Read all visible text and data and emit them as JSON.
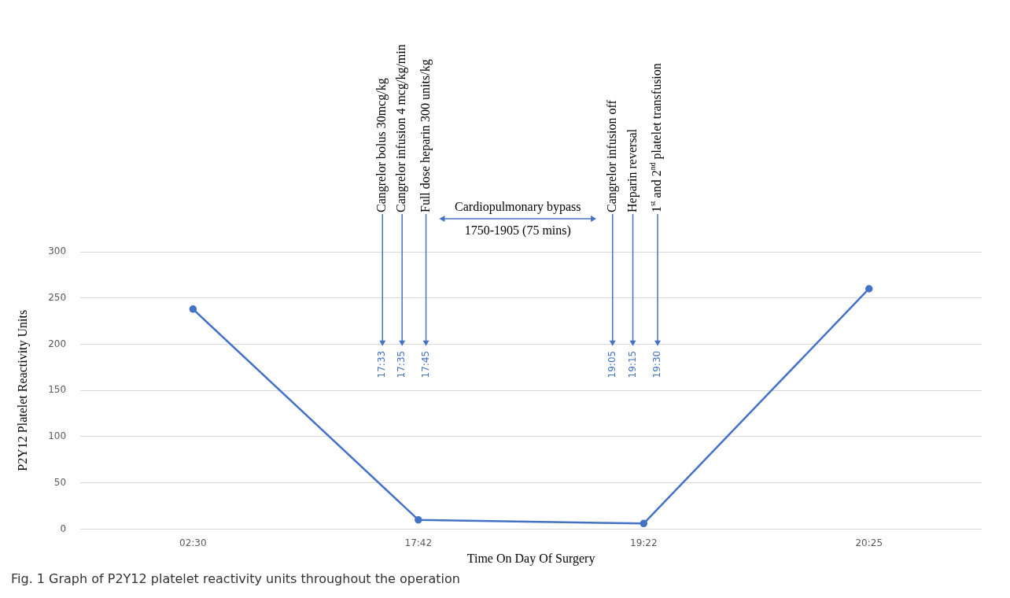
{
  "chart_data": {
    "type": "line",
    "categories": [
      "02:30",
      "17:42",
      "19:22",
      "20:25"
    ],
    "series": [
      {
        "color": "#4472c4",
        "values": [
          238,
          10,
          6,
          260
        ]
      }
    ],
    "xlabel": "Time On Day Of Surgery",
    "ylabel": "P2Y12 Platelet Reactivity Units",
    "ylim": [
      0,
      300
    ],
    "yticks": [
      0,
      50,
      100,
      150,
      200,
      250,
      300
    ],
    "grid": "y",
    "legend": false,
    "marker": "circle",
    "line_style": "solid",
    "annotations": [
      "Cangrelor bolus 30mcg/kg",
      "Cangrelor infusion 4 mcg/kg/min",
      "Full dose heparin 300 units/kg",
      "Cangrelor infusion off",
      "Heparin reversal",
      "1$^{st}$ and 2$^{nd}$ platelet transfusion",
      "Cardiopulmonary bypass",
      "1750-1905 (75 mins)",
      "17:33",
      "17:35",
      "17:45",
      "19:05",
      "19:15",
      "19:30",
      "Fig. 1 Graph of P2Y12 platelet reactivity units throughout the operation"
    ]
  }
}
